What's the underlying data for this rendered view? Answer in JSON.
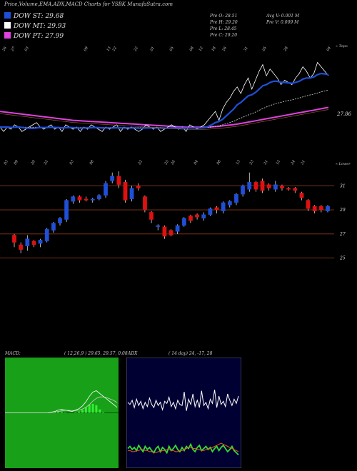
{
  "header": {
    "title": "Price,Volume,EMA,ADX,MACD Charts for YSBK MunafaSutra.com"
  },
  "legend": [
    {
      "label": "DOW ST: 29.68",
      "color": "#1f4fd8"
    },
    {
      "label": "DOW MT: 29.93",
      "color": "#ffffff"
    },
    {
      "label": "DOW PT: 27.99",
      "color": "#e040e0"
    }
  ],
  "stats": {
    "col1": [
      "Pre  O: 28.51",
      "Pre  H: 29.20",
      "Pre  L: 28.45",
      "Pre  C: 29.20"
    ],
    "col2": [
      "Avg V: 0.001 M",
      "Pre  V: 0.009 M"
    ]
  },
  "panel1": {
    "top_right_label": "« Topo",
    "price_label": "27.86",
    "date_ticks": [
      "26",
      "27",
      "03",
      "09",
      "13",
      "22",
      "22",
      "01",
      "05",
      "08",
      "12",
      "18",
      "26",
      "31",
      "05",
      "28",
      "04"
    ]
  },
  "panel2": {
    "top_right_label": "« Lower",
    "date_ticks": [
      "03",
      "09",
      "20",
      "22",
      "03",
      "08",
      "22",
      "25",
      "26",
      "04",
      "08",
      "13",
      "23",
      "21",
      "12",
      "24",
      "31"
    ]
  },
  "macd": {
    "title": "MACD:",
    "params": "( 12,26,9 ) 29.65, 29.57, 0.08"
  },
  "adx": {
    "title": "ADX",
    "params": "( 14 day) 24, -17, 28"
  },
  "chart_data": [
    {
      "type": "line",
      "name": "price-ema",
      "series": [
        {
          "name": "price",
          "color": "#ffffff",
          "values": [
            33,
            31,
            33,
            32,
            34,
            33,
            31,
            32,
            33,
            34,
            35,
            33,
            32,
            33,
            34,
            32,
            33,
            31,
            34,
            33,
            32,
            33,
            31,
            33,
            32,
            34,
            33,
            32,
            31,
            33,
            32,
            33,
            34,
            31,
            33,
            32,
            33,
            32,
            31,
            32,
            34,
            33,
            32,
            33,
            31,
            32,
            33,
            34,
            33,
            32,
            33,
            31,
            34,
            33,
            32,
            33,
            34,
            36,
            38,
            40,
            36,
            41,
            44,
            46,
            49,
            51,
            48,
            52,
            55,
            50,
            54,
            58,
            61,
            56,
            59,
            57,
            55,
            52,
            54,
            53,
            52,
            55,
            57,
            60,
            58,
            55,
            57,
            62,
            60,
            58,
            56
          ]
        },
        {
          "name": "ema-st",
          "color": "#1f4fd8",
          "values": [
            33,
            33,
            33,
            32.8,
            32.9,
            33,
            32.8,
            32.6,
            32.5,
            32.4,
            32.6,
            32.8,
            32.7,
            32.8,
            32.9,
            32.8,
            32.7,
            32.6,
            32.7,
            32.8,
            32.7,
            32.6,
            32.5,
            32.6,
            32.6,
            32.7,
            32.8,
            32.7,
            32.6,
            32.6,
            32.6,
            32.6,
            32.7,
            32.6,
            32.6,
            32.6,
            32.6,
            32.6,
            32.5,
            32.5,
            32.6,
            32.6,
            32.6,
            32.6,
            32.6,
            32.5,
            32.5,
            32.6,
            32.6,
            32.6,
            32.6,
            32.5,
            32.6,
            32.6,
            32.6,
            32.6,
            32.7,
            33.2,
            34,
            35,
            35.5,
            36.5,
            38,
            39.5,
            41,
            43,
            44,
            45.5,
            47,
            47.5,
            48.5,
            50,
            51.5,
            52,
            53,
            53.5,
            53.5,
            53,
            53,
            52.8,
            52.6,
            53,
            53.5,
            54.5,
            55,
            55,
            55.5,
            56.5,
            57,
            56.8,
            56.5
          ]
        },
        {
          "name": "ema-mt",
          "color": "#dddddd",
          "values": [
            33,
            33,
            33,
            33,
            33,
            33,
            33,
            32.9,
            32.9,
            32.9,
            32.9,
            32.9,
            32.9,
            32.9,
            32.9,
            32.9,
            32.9,
            32.8,
            32.8,
            32.8,
            32.8,
            32.8,
            32.8,
            32.8,
            32.8,
            32.8,
            32.8,
            32.8,
            32.8,
            32.8,
            32.8,
            32.8,
            32.8,
            32.8,
            32.8,
            32.8,
            32.8,
            32.8,
            32.8,
            32.8,
            32.8,
            32.8,
            32.8,
            32.8,
            32.8,
            32.7,
            32.7,
            32.7,
            32.7,
            32.7,
            32.7,
            32.7,
            32.7,
            32.7,
            32.7,
            32.7,
            32.7,
            32.8,
            33,
            33.3,
            33.6,
            34,
            34.5,
            35,
            35.6,
            36.3,
            37,
            37.7,
            38.4,
            39,
            39.7,
            40.5,
            41.3,
            42,
            42.6,
            43.2,
            43.7,
            44.1,
            44.5,
            44.9,
            45.2,
            45.6,
            46,
            46.5,
            47,
            47.4,
            47.8,
            48.3,
            48.8,
            49.2,
            49.5
          ]
        },
        {
          "name": "ema-pt",
          "color": "#e040e0",
          "values": [
            40,
            39.8,
            39.6,
            39.4,
            39.2,
            39,
            38.8,
            38.6,
            38.4,
            38.2,
            38,
            37.8,
            37.6,
            37.4,
            37.2,
            37,
            36.8,
            36.6,
            36.4,
            36.2,
            36,
            35.9,
            35.8,
            35.7,
            35.6,
            35.5,
            35.4,
            35.3,
            35.2,
            35.1,
            35,
            34.9,
            34.8,
            34.7,
            34.6,
            34.5,
            34.4,
            34.3,
            34.2,
            34.1,
            34,
            33.9,
            33.8,
            33.7,
            33.6,
            33.5,
            33.4,
            33.3,
            33.2,
            33.1,
            33,
            32.9,
            32.9,
            32.9,
            32.9,
            32.9,
            32.9,
            33,
            33.1,
            33.2,
            33.3,
            33.5,
            33.7,
            33.9,
            34.1,
            34.3,
            34.6,
            34.9,
            35.2,
            35.5,
            35.8,
            36.1,
            36.4,
            36.7,
            37,
            37.3,
            37.6,
            37.9,
            38.2,
            38.5,
            38.8,
            39.1,
            39.4,
            39.7,
            40,
            40.3,
            40.6,
            40.9,
            41.2,
            41.5,
            41.8
          ]
        }
      ]
    },
    {
      "type": "candlestick",
      "name": "price-candles",
      "ylim": [
        24.5,
        32.5
      ],
      "gridlines": [
        25,
        27,
        29,
        31
      ],
      "tick_labels": [
        "31",
        "29",
        "27",
        "25"
      ],
      "candles": [
        {
          "o": 26.3,
          "c": 26.9,
          "h": 27.0,
          "l": 25.9,
          "up": false
        },
        {
          "o": 26.1,
          "c": 25.7,
          "h": 26.3,
          "l": 25.4,
          "up": false
        },
        {
          "o": 26.0,
          "c": 26.6,
          "h": 26.9,
          "l": 25.6,
          "up": true
        },
        {
          "o": 26.4,
          "c": 26.1,
          "h": 26.5,
          "l": 25.9,
          "up": false
        },
        {
          "o": 26.2,
          "c": 26.5,
          "h": 26.6,
          "l": 25.9,
          "up": true
        },
        {
          "o": 26.4,
          "c": 27.4,
          "h": 27.5,
          "l": 26.3,
          "up": true
        },
        {
          "o": 27.3,
          "c": 27.9,
          "h": 28.0,
          "l": 27.1,
          "up": true
        },
        {
          "o": 27.9,
          "c": 28.3,
          "h": 28.4,
          "l": 27.7,
          "up": true
        },
        {
          "o": 28.2,
          "c": 29.8,
          "h": 29.9,
          "l": 28.0,
          "up": true
        },
        {
          "o": 29.7,
          "c": 30.1,
          "h": 30.2,
          "l": 29.5,
          "up": true
        },
        {
          "o": 30.1,
          "c": 29.8,
          "h": 30.2,
          "l": 29.6,
          "up": false
        },
        {
          "o": 29.9,
          "c": 29.8,
          "h": 30.1,
          "l": 29.7,
          "up": false
        },
        {
          "o": 29.8,
          "c": 29.9,
          "h": 30.0,
          "l": 29.6,
          "up": true
        },
        {
          "o": 29.9,
          "c": 30.2,
          "h": 30.3,
          "l": 29.8,
          "up": true
        },
        {
          "o": 30.2,
          "c": 31.2,
          "h": 31.4,
          "l": 30.0,
          "up": true
        },
        {
          "o": 31.4,
          "c": 31.8,
          "h": 32.1,
          "l": 31.2,
          "up": true
        },
        {
          "o": 31.8,
          "c": 31.1,
          "h": 32.2,
          "l": 30.8,
          "up": false
        },
        {
          "o": 31.3,
          "c": 29.8,
          "h": 31.5,
          "l": 29.6,
          "up": false
        },
        {
          "o": 29.9,
          "c": 30.8,
          "h": 31.0,
          "l": 29.7,
          "up": true
        },
        {
          "o": 30.8,
          "c": 31.0,
          "h": 31.2,
          "l": 30.6,
          "up": false
        },
        {
          "o": 30.1,
          "c": 29.0,
          "h": 30.2,
          "l": 28.8,
          "up": false
        },
        {
          "o": 28.8,
          "c": 28.2,
          "h": 28.9,
          "l": 27.9,
          "up": false
        },
        {
          "o": 27.7,
          "c": 27.6,
          "h": 27.8,
          "l": 27.3,
          "up": true
        },
        {
          "o": 27.6,
          "c": 26.8,
          "h": 27.7,
          "l": 26.6,
          "up": false
        },
        {
          "o": 26.9,
          "c": 27.3,
          "h": 27.4,
          "l": 26.8,
          "up": false
        },
        {
          "o": 27.2,
          "c": 27.7,
          "h": 27.8,
          "l": 27.0,
          "up": true
        },
        {
          "o": 27.7,
          "c": 28.3,
          "h": 28.4,
          "l": 27.6,
          "up": true
        },
        {
          "o": 28.1,
          "c": 28.5,
          "h": 28.6,
          "l": 27.9,
          "up": false
        },
        {
          "o": 28.4,
          "c": 28.6,
          "h": 28.7,
          "l": 28.2,
          "up": false
        },
        {
          "o": 28.3,
          "c": 28.6,
          "h": 28.8,
          "l": 28.1,
          "up": true
        },
        {
          "o": 28.6,
          "c": 29.1,
          "h": 29.2,
          "l": 28.5,
          "up": true
        },
        {
          "o": 29.0,
          "c": 29.2,
          "h": 29.3,
          "l": 28.7,
          "up": false
        },
        {
          "o": 28.9,
          "c": 29.6,
          "h": 29.7,
          "l": 28.7,
          "up": true
        },
        {
          "o": 29.4,
          "c": 29.7,
          "h": 29.8,
          "l": 29.2,
          "up": true
        },
        {
          "o": 29.6,
          "c": 30.3,
          "h": 30.4,
          "l": 29.4,
          "up": true
        },
        {
          "o": 30.3,
          "c": 31.0,
          "h": 31.1,
          "l": 30.1,
          "up": true
        },
        {
          "o": 30.7,
          "c": 31.3,
          "h": 32.1,
          "l": 30.5,
          "up": true
        },
        {
          "o": 31.3,
          "c": 30.7,
          "h": 31.4,
          "l": 30.5,
          "up": false
        },
        {
          "o": 31.4,
          "c": 30.6,
          "h": 31.6,
          "l": 30.4,
          "up": false
        },
        {
          "o": 31.1,
          "c": 30.8,
          "h": 31.2,
          "l": 30.6,
          "up": false
        },
        {
          "o": 31.1,
          "c": 30.7,
          "h": 31.4,
          "l": 30.5,
          "up": true
        },
        {
          "o": 31.0,
          "c": 30.8,
          "h": 31.1,
          "l": 30.6,
          "up": false
        },
        {
          "o": 30.8,
          "c": 30.7,
          "h": 30.9,
          "l": 30.6,
          "up": false
        },
        {
          "o": 30.8,
          "c": 30.6,
          "h": 30.9,
          "l": 30.4,
          "up": false
        },
        {
          "o": 30.4,
          "c": 30.0,
          "h": 30.5,
          "l": 29.8,
          "up": false
        },
        {
          "o": 29.8,
          "c": 29.1,
          "h": 29.9,
          "l": 28.9,
          "up": false
        },
        {
          "o": 29.3,
          "c": 28.9,
          "h": 29.4,
          "l": 28.7,
          "up": false
        },
        {
          "o": 29.0,
          "c": 29.3,
          "h": 29.4,
          "l": 28.8,
          "up": false
        },
        {
          "o": 28.9,
          "c": 29.3,
          "h": 29.4,
          "l": 28.8,
          "up": true
        }
      ]
    },
    {
      "type": "area",
      "name": "macd",
      "series": [
        {
          "name": "macd-line",
          "color": "#ffffff",
          "values": [
            0,
            0.05,
            0.1,
            0.2,
            0.25,
            0.2,
            0.15,
            0.1,
            0.2,
            0.3,
            0.5,
            0.8,
            1.2,
            1.5,
            1.6,
            1.4,
            1.2,
            1.0,
            0.8,
            0.6,
            0.4
          ]
        },
        {
          "name": "signal-line",
          "color": "#cccccc",
          "values": [
            0,
            0.02,
            0.05,
            0.1,
            0.15,
            0.18,
            0.18,
            0.16,
            0.17,
            0.2,
            0.28,
            0.4,
            0.6,
            0.85,
            1.05,
            1.15,
            1.15,
            1.1,
            1.0,
            0.9,
            0.75
          ]
        },
        {
          "name": "histogram",
          "color": "#33ee33",
          "values": [
            0,
            0.03,
            0.05,
            0.1,
            0.1,
            0.02,
            0,
            0,
            0.03,
            0.1,
            0.22,
            0.4,
            0.6,
            0.65,
            0.55,
            0.25,
            0.05,
            0,
            0,
            0,
            0
          ]
        }
      ],
      "ylim": [
        -4,
        4
      ]
    },
    {
      "type": "line",
      "name": "adx",
      "series": [
        {
          "name": "di-plus",
          "color": "#ffffff",
          "values": [
            60,
            58,
            62,
            55,
            63,
            57,
            61,
            54,
            60,
            56,
            64,
            58,
            55,
            62,
            57,
            60,
            53,
            61,
            59,
            65,
            56,
            60,
            54,
            62,
            58,
            57,
            70,
            52,
            63,
            58,
            68,
            56,
            62,
            55,
            71,
            57,
            60,
            54,
            63,
            59,
            72,
            55,
            66,
            58,
            61,
            56,
            68,
            62,
            57,
            63,
            59,
            66
          ]
        },
        {
          "name": "di-minus",
          "color": "#33dd33",
          "values": [
            16,
            18,
            15,
            17,
            14,
            19,
            16,
            13,
            18,
            15,
            17,
            14,
            12,
            16,
            18,
            13,
            17,
            15,
            12,
            18,
            14,
            16,
            19,
            15,
            13,
            17,
            14,
            18,
            16,
            20,
            15,
            13,
            17,
            19,
            14,
            16,
            18,
            15,
            17,
            13,
            16,
            18,
            14,
            17,
            19,
            16,
            13,
            15,
            18,
            14,
            12,
            10
          ]
        },
        {
          "name": "adx-line",
          "color": "#e85a10",
          "values": [
            14,
            14,
            13,
            13,
            14,
            14,
            15,
            15,
            14,
            14,
            13,
            13,
            12,
            12,
            13,
            13,
            14,
            14,
            15,
            15,
            14,
            14,
            13,
            13,
            14,
            14,
            15,
            16,
            17,
            17,
            16,
            16,
            15,
            15,
            14,
            14,
            15,
            15,
            16,
            17,
            18,
            19,
            20,
            21,
            20,
            19,
            18,
            17,
            16,
            15,
            14,
            13
          ]
        }
      ],
      "ylim": [
        0,
        100
      ]
    }
  ]
}
